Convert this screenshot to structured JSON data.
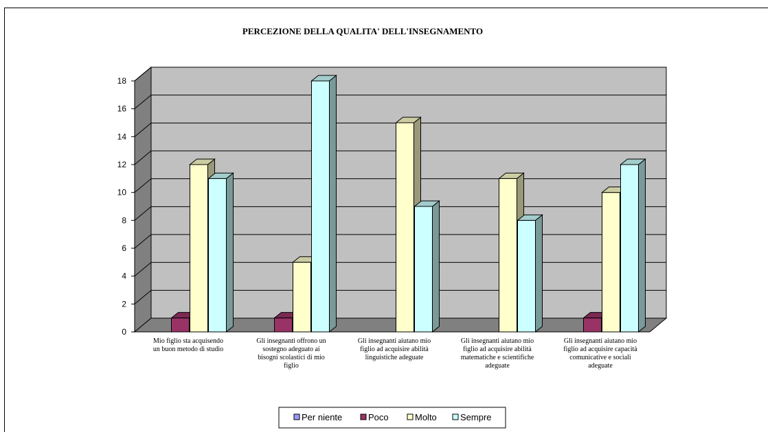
{
  "chart_data": {
    "type": "bar",
    "title": "PERCEZIONE DELLA QUALITA' DELL'INSEGNAMENTO",
    "xlabel": "",
    "ylabel": "",
    "ylim": [
      0,
      18
    ],
    "yticks": [
      0,
      2,
      4,
      6,
      8,
      10,
      12,
      14,
      16,
      18
    ],
    "grid": true,
    "style": "3d-clustered-column",
    "legend_position": "bottom",
    "categories": [
      [
        "Mio figlio sta acquisendo",
        "un buon metodo di studio"
      ],
      [
        "Gli insegnanti offrono un",
        "sostegno adeguato ai",
        "bisogni scolastici di mio",
        "figlio"
      ],
      [
        "Gli insegnanti aiutano mio",
        "figlio ad acquisire abilità",
        "linguistiche adeguate"
      ],
      [
        "Gli insegnanti aiutano mio",
        "figlio ad acquisire abilità",
        "matematiche e scientifiche",
        "adeguate"
      ],
      [
        "Gli insegnanti aiutano mio",
        "figlio ad acquisire capacità",
        "comunicative e sociali",
        "adeguate"
      ]
    ],
    "series": [
      {
        "name": "Per niente",
        "color": "#9999FF",
        "values": [
          0,
          0,
          0,
          0,
          0
        ]
      },
      {
        "name": "Poco",
        "color": "#993366",
        "values": [
          1,
          1,
          0,
          0,
          1
        ]
      },
      {
        "name": "Molto",
        "color": "#FFFFCC",
        "values": [
          12,
          5,
          15,
          11,
          10
        ]
      },
      {
        "name": "Sempre",
        "color": "#CCFFFF",
        "values": [
          11,
          18,
          9,
          8,
          12
        ]
      }
    ],
    "colors": {
      "wall": "#C0C0C0",
      "side_wall": "#808080",
      "floor": "#808080"
    }
  }
}
